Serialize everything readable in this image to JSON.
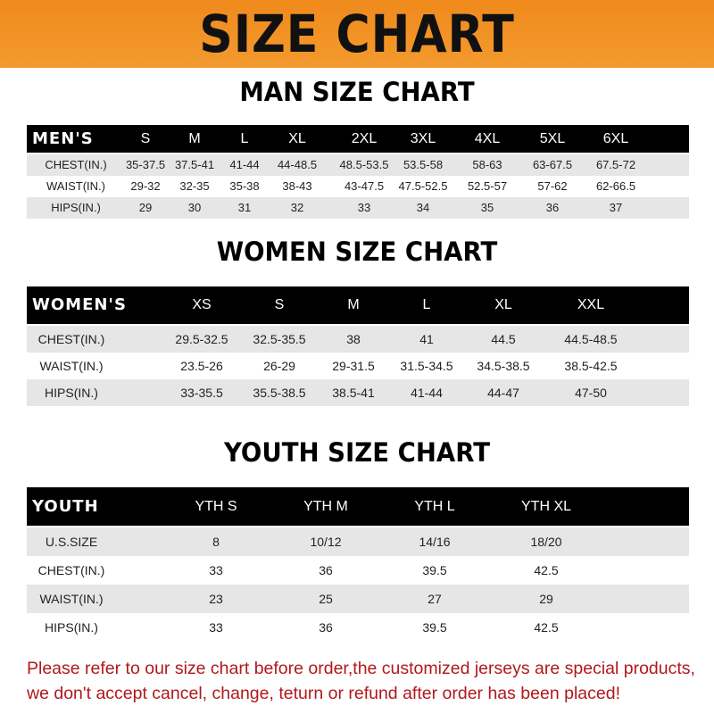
{
  "header": {
    "title": "SIZE CHART",
    "color": "#f08a1c"
  },
  "men": {
    "title": "MAN SIZE CHART",
    "label": "MEN'S",
    "sizes": [
      "S",
      "M",
      "L",
      "XL",
      "2XL",
      "3XL",
      "4XL",
      "5XL",
      "6XL"
    ],
    "rows": [
      {
        "label": "CHEST(IN.)",
        "values": [
          "35-37.5",
          "37.5-41",
          "41-44",
          "44-48.5",
          "48.5-53.5",
          "53.5-58",
          "58-63",
          "63-67.5",
          "67.5-72"
        ]
      },
      {
        "label": "WAIST(IN.)",
        "values": [
          "29-32",
          "32-35",
          "35-38",
          "38-43",
          "43-47.5",
          "47.5-52.5",
          "52.5-57",
          "57-62",
          "62-66.5"
        ]
      },
      {
        "label": "HIPS(IN.)",
        "values": [
          "29",
          "30",
          "31",
          "32",
          "33",
          "34",
          "35",
          "36",
          "37"
        ]
      }
    ]
  },
  "women": {
    "title": "WOMEN SIZE CHART",
    "label": "WOMEN'S",
    "sizes": [
      "XS",
      "S",
      "M",
      "L",
      "XL",
      "XXL"
    ],
    "rows": [
      {
        "label": "CHEST(IN.)",
        "values": [
          "29.5-32.5",
          "32.5-35.5",
          "38",
          "41",
          "44.5",
          "44.5-48.5"
        ]
      },
      {
        "label": "WAIST(IN.)",
        "values": [
          "23.5-26",
          "26-29",
          "29-31.5",
          "31.5-34.5",
          "34.5-38.5",
          "38.5-42.5"
        ]
      },
      {
        "label": "HIPS(IN.)",
        "values": [
          "33-35.5",
          "35.5-38.5",
          "38.5-41",
          "41-44",
          "44-47",
          "47-50"
        ]
      }
    ]
  },
  "youth": {
    "title": "YOUTH SIZE CHART",
    "label": "YOUTH",
    "sizes": [
      "YTH S",
      "YTH M",
      "YTH L",
      "YTH XL"
    ],
    "rows": [
      {
        "label": "U.S.SIZE",
        "values": [
          "8",
          "10/12",
          "14/16",
          "18/20"
        ]
      },
      {
        "label": "CHEST(IN.)",
        "values": [
          "33",
          "36",
          "39.5",
          "42.5"
        ]
      },
      {
        "label": "WAIST(IN.)",
        "values": [
          "23",
          "25",
          "27",
          "29"
        ]
      },
      {
        "label": "HIPS(IN.)",
        "values": [
          "33",
          "36",
          "39.5",
          "42.5"
        ]
      }
    ]
  },
  "notice": {
    "line1": "Please refer to our size chart before order,the customized jerseys are special products,",
    "line2": "we don't accept cancel, change, teturn or refund after order has been placed!",
    "color": "#b2181b"
  }
}
